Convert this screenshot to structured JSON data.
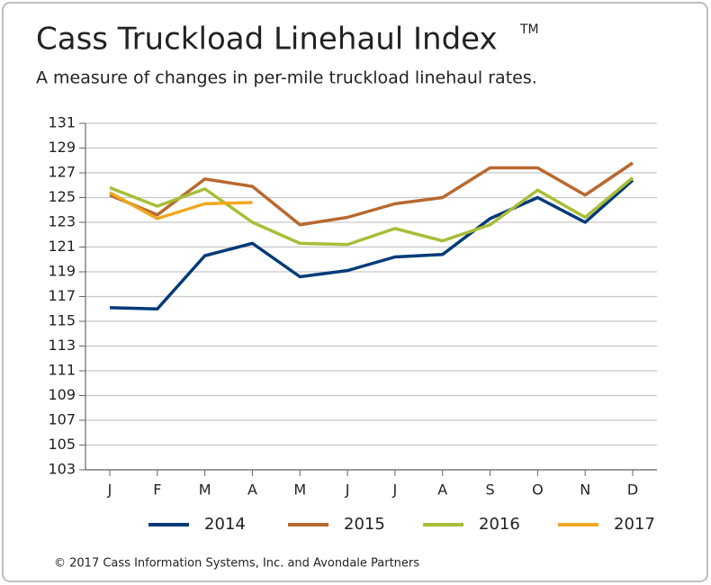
{
  "chart_data": {
    "type": "line",
    "title": "Cass Truckload Linehaul Index",
    "trademark": "TM",
    "subtitle": "A measure of changes in per-mile truckload linehaul rates.",
    "footer": "© 2017 Cass Information Systems, Inc. and Avondale Partners",
    "categories": [
      "J",
      "F",
      "M",
      "A",
      "M",
      "J",
      "J",
      "A",
      "S",
      "O",
      "N",
      "D"
    ],
    "ylim": [
      103,
      131
    ],
    "yticks": [
      103,
      105,
      107,
      109,
      111,
      113,
      115,
      117,
      119,
      121,
      123,
      125,
      127,
      129,
      131
    ],
    "grid": true,
    "legend": "bottom",
    "series": [
      {
        "name": "2014",
        "color": "#003a78",
        "values": [
          116.1,
          116.0,
          120.3,
          121.3,
          118.6,
          119.1,
          120.2,
          120.4,
          123.3,
          125.0,
          123.0,
          126.4
        ]
      },
      {
        "name": "2015",
        "color": "#b8692e",
        "values": [
          125.2,
          123.6,
          126.5,
          125.9,
          122.8,
          123.4,
          124.5,
          125.0,
          127.4,
          127.4,
          125.2,
          127.8
        ]
      },
      {
        "name": "2016",
        "color": "#a9bd38",
        "values": [
          125.8,
          124.3,
          125.7,
          123.0,
          121.3,
          121.2,
          122.5,
          121.5,
          122.8,
          125.6,
          123.4,
          126.6
        ]
      },
      {
        "name": "2017",
        "color": "#f0a820",
        "values": [
          125.4,
          123.3,
          124.5,
          124.6,
          null,
          null,
          null,
          null,
          null,
          null,
          null,
          null
        ]
      }
    ]
  }
}
